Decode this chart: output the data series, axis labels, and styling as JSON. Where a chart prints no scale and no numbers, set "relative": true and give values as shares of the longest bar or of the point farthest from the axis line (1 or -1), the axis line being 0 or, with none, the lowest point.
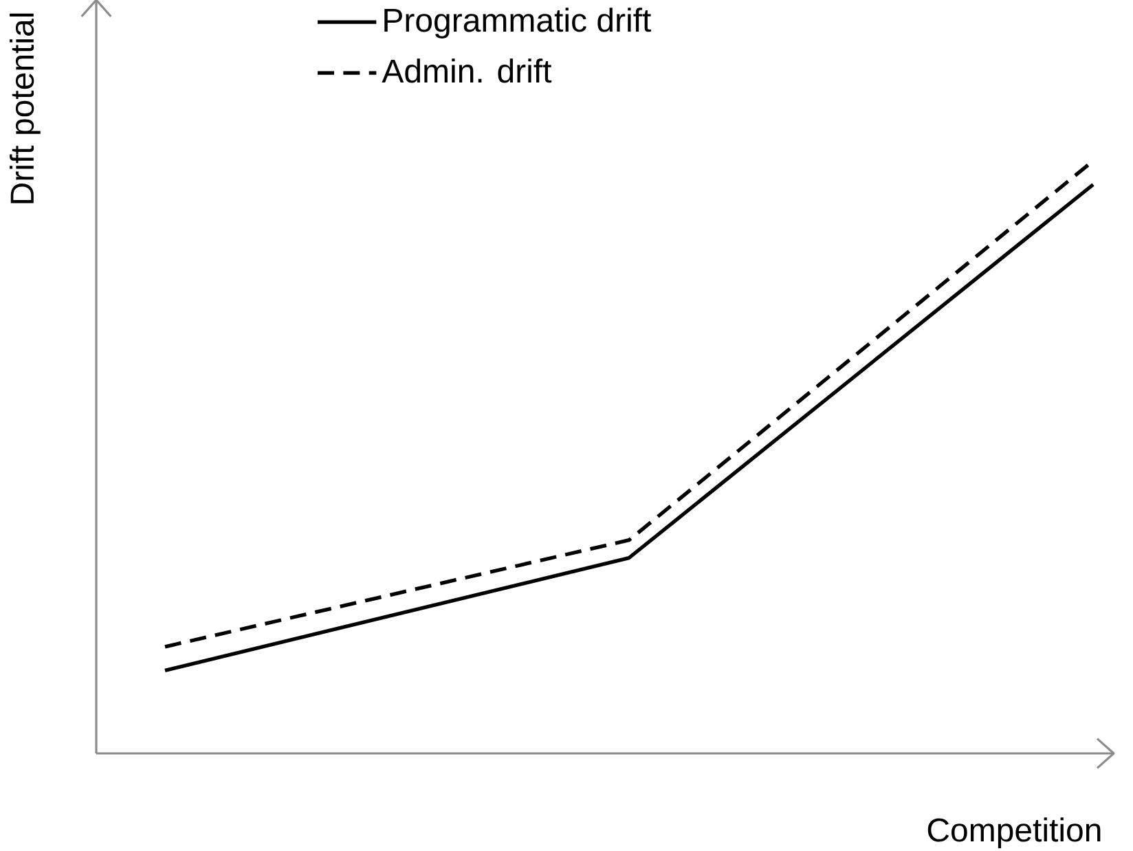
{
  "chart_data": {
    "type": "line",
    "xlabel": "Competition",
    "ylabel": "Drift potential",
    "relative": true,
    "legend": "top left",
    "categories": [
      null,
      null,
      null
    ],
    "series": [
      {
        "name": "Programmatic drift",
        "color": "#000000",
        "line_style": "solid",
        "values": [
          0.14,
          0.33,
          0.96
        ]
      },
      {
        "name": "Admin. drift",
        "color": "#000000",
        "line_style": "dashed",
        "values": [
          0.18,
          0.36,
          1
        ]
      }
    ]
  }
}
